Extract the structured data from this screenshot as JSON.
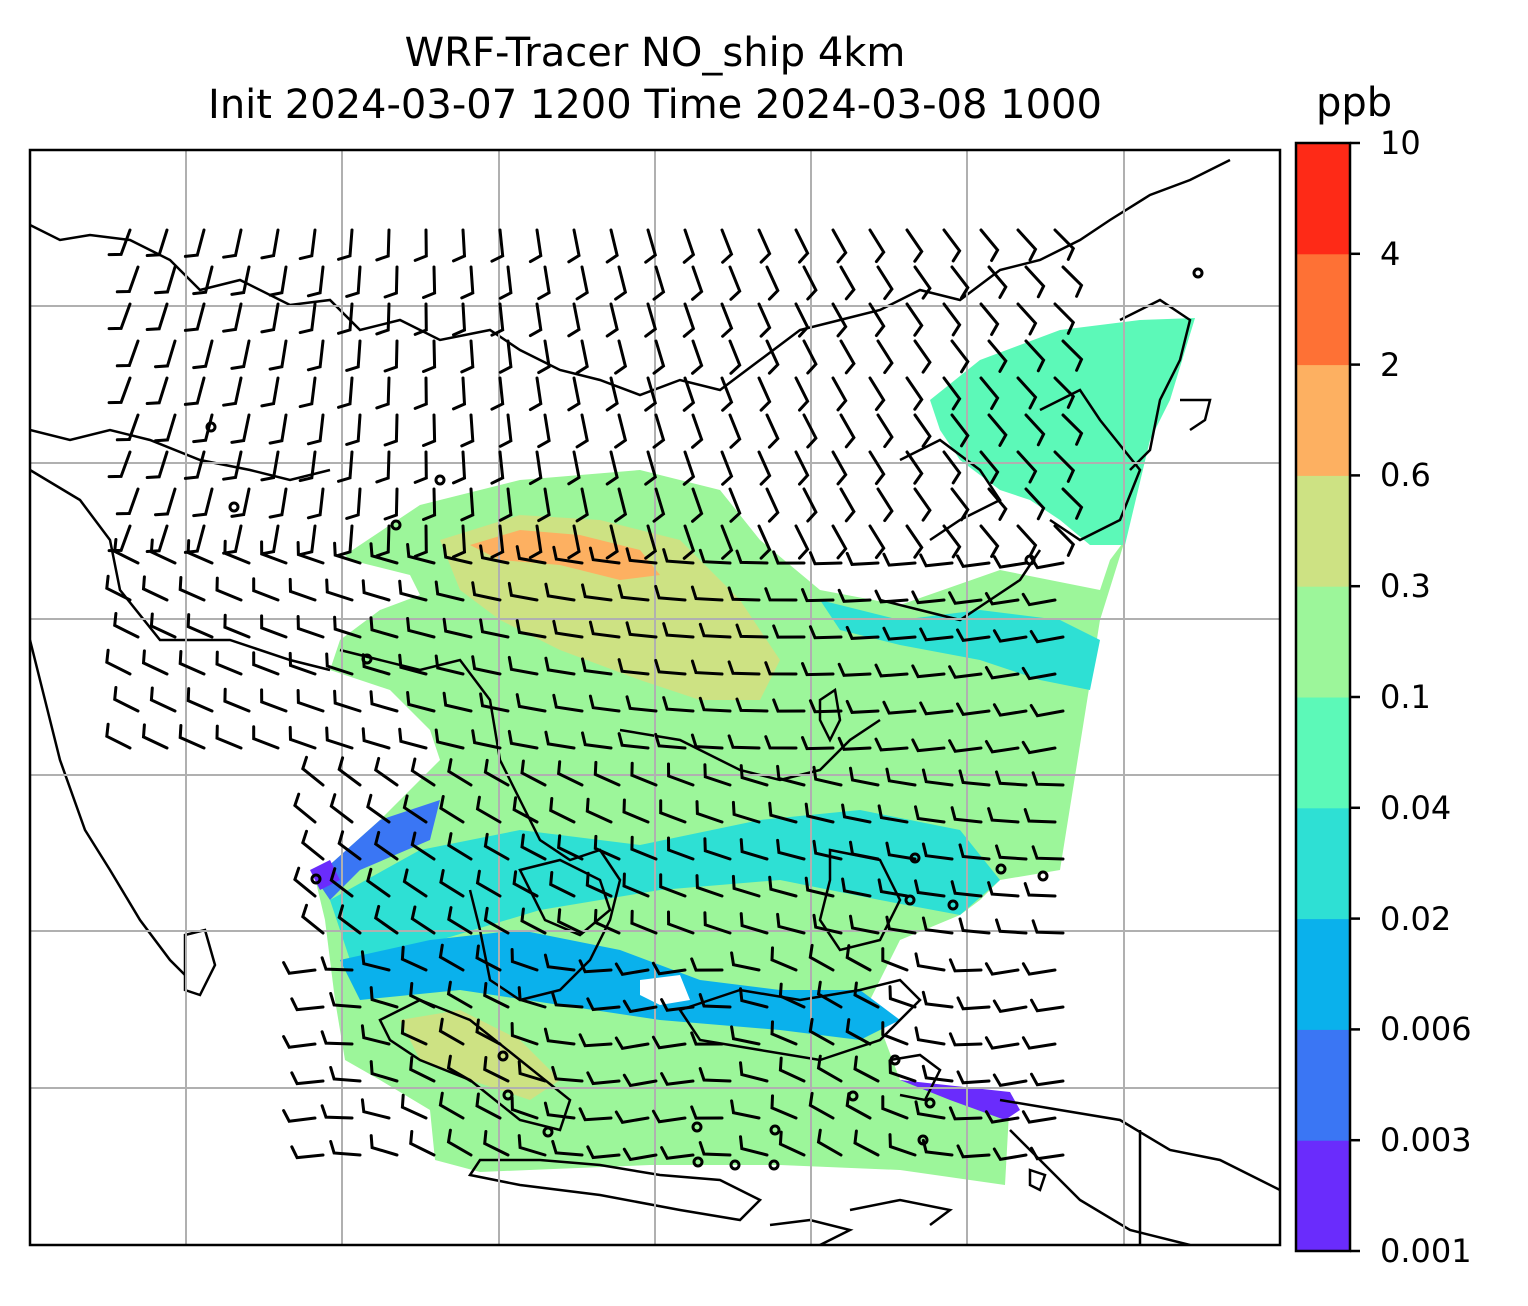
{
  "title_line1": "WRF-Tracer NO_ship 4km",
  "title_line2": "Init 2024-03-07 1200 Time 2024-03-08 1000",
  "colorbar": {
    "unit": "ppb",
    "levels": [
      "0.001",
      "0.003",
      "0.006",
      "0.02",
      "0.04",
      "0.1",
      "0.3",
      "0.6",
      "2",
      "4",
      "10"
    ],
    "colors": [
      "#6a2cfc",
      "#3a76f4",
      "#0ab1ec",
      "#2ee0d4",
      "#5cf9b8",
      "#9cf69a",
      "#cde283",
      "#fdb061",
      "#fe7135",
      "#fe2a17"
    ]
  },
  "map": {
    "variable": "NO_ship",
    "grid_lines": true,
    "coastlines": true,
    "wind_barbs": true
  }
}
